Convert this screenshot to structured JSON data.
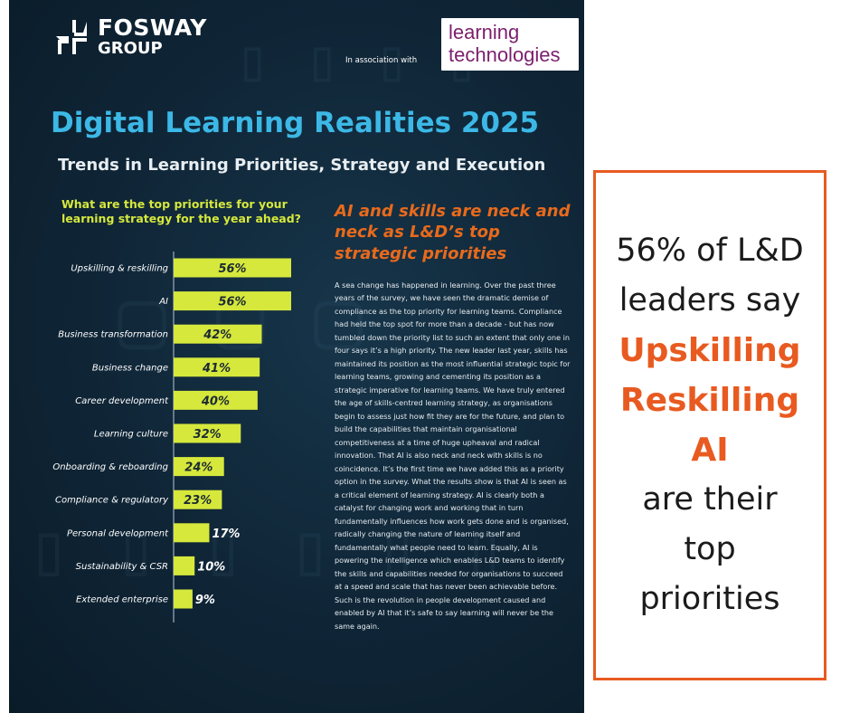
{
  "header": {
    "logo_line1": "FOSWAY",
    "logo_line2": "GROUP",
    "association_text": "In association with",
    "partner_logo_line1": "learning",
    "partner_logo_line2": "technologies"
  },
  "title": "Digital Learning Realities 2025",
  "subtitle": "Trends in Learning Priorities, Strategy and Execution",
  "colors": {
    "background": "#0f2536",
    "title": "#3cb8e6",
    "bar": "#d6e83c",
    "accent_orange": "#e85a20",
    "callout_border": "#e85a20"
  },
  "chart_data": {
    "type": "bar",
    "orientation": "horizontal",
    "title": "What are the top priorities for your learning strategy for the year ahead?",
    "categories": [
      "Upskilling & reskilling",
      "AI",
      "Business transformation",
      "Business change",
      "Career development",
      "Learning culture",
      "Onboarding & reboarding",
      "Compliance & regulatory",
      "Personal development",
      "Sustainability & CSR",
      "Extended enterprise"
    ],
    "values": [
      56,
      56,
      42,
      41,
      40,
      32,
      24,
      23,
      17,
      10,
      9
    ],
    "value_labels": [
      "56%",
      "56%",
      "42%",
      "41%",
      "40%",
      "32%",
      "24%",
      "23%",
      "17%",
      "10%",
      "9%"
    ],
    "unit": "%",
    "xlim": [
      0,
      56
    ]
  },
  "article": {
    "headline": "AI and skills are neck and neck as L&D’s top strategic priorities",
    "body": "A sea change has happened in learning. Over the past three years of the survey, we have seen the dramatic demise of compliance as the top priority for learning teams. Compliance had held the top spot for more than a decade - but has now tumbled down the priority list to such an extent that only one in four says it’s a high priority. The new leader last year, skills has maintained its position as the most influential strategic topic for learning teams, growing and cementing its position as a strategic imperative for learning teams. We have truly entered the age of skills-centred learning strategy, as organisations begin to assess just how fit they are for the future, and plan to build the capabilities that maintain organisational competitiveness at a time of huge upheaval and radical innovation. That AI is also neck and neck with skills is no coincidence. It’s the first time we have added this as a priority option in the survey. What the results show is that AI is seen as a critical element of learning strategy. AI is clearly both a catalyst for changing work and working that in turn fundamentally influences how work gets done and is organised, radically changing the nature of learning itself and fundamentally what people need to learn. Equally, AI is powering the intelligence which enables L&D teams to identify the skills and capabilities needed for organisations to succeed at a speed and scale that has never been achievable before. Such is the revolution in people development caused and enabled by AI that it’s safe to say learning will never be the same again."
  },
  "callout": {
    "line1": "56% of L&D",
    "line2": "leaders say",
    "highlight1": "Upskilling",
    "highlight2": "Reskilling",
    "highlight3": "AI",
    "line3": "are their",
    "line4": "top",
    "line5": "priorities"
  }
}
